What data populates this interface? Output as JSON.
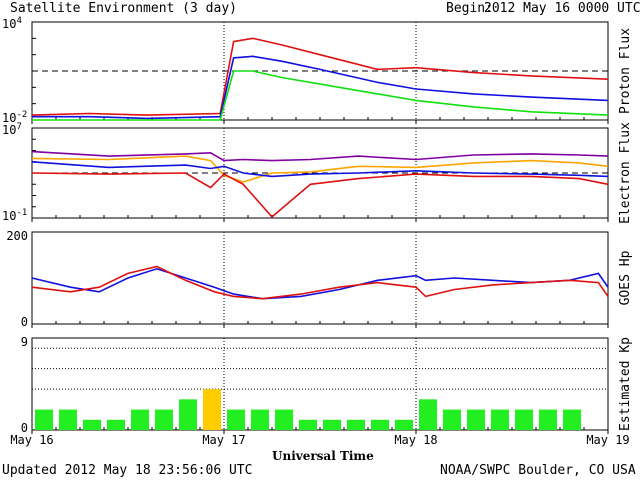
{
  "header": {
    "title": "Satellite Environment (3 day)",
    "begin_label": "Begin:",
    "begin_value": "2012 May 16 0000 UTC"
  },
  "footer": {
    "updated": "Updated 2012 May 18 23:56:06 UTC",
    "credit": "NOAA/SWPC Boulder, CO USA"
  },
  "x_axis": {
    "label": "Universal Time",
    "ticks": [
      "May 16",
      "May 17",
      "May 18",
      "May 19"
    ]
  },
  "colors": {
    "red": "#e01010",
    "blue": "#1010e0",
    "green": "#10e010",
    "orange": "#ffa500",
    "purple": "#8000a0",
    "kp_green": "#22ee22",
    "kp_yellow": "#ffcc00"
  },
  "chart_data": [
    {
      "type": "line",
      "ylabel": "Proton Flux",
      "scale": "log",
      "ylim_exp": [
        -2,
        4
      ],
      "ytick_labels": [
        {
          "base": "10",
          "exp": "4"
        },
        {
          "base": "10",
          "exp": "-2"
        }
      ],
      "threshold_exp": 1,
      "x_days": [
        0,
        0.3,
        0.6,
        0.98,
        1.05,
        1.15,
        1.3,
        1.5,
        1.8,
        2.0,
        2.3,
        2.6,
        3.0
      ],
      "series": [
        {
          "color": "red",
          "values_exp": [
            -1.7,
            -1.6,
            -1.7,
            -1.6,
            2.8,
            3.0,
            2.6,
            2.0,
            1.1,
            1.2,
            0.9,
            0.7,
            0.5
          ]
        },
        {
          "color": "blue",
          "values_exp": [
            -1.8,
            -1.8,
            -1.9,
            -1.8,
            1.8,
            1.9,
            1.6,
            1.1,
            0.3,
            -0.1,
            -0.4,
            -0.6,
            -0.8
          ]
        },
        {
          "color": "green",
          "values_exp": [
            -2.0,
            -2.0,
            -2.0,
            -2.0,
            1.0,
            1.0,
            0.6,
            0.2,
            -0.4,
            -0.8,
            -1.2,
            -1.5,
            -1.7
          ]
        }
      ]
    },
    {
      "type": "line",
      "ylabel": "Electron Flux",
      "scale": "log",
      "ylim_exp": [
        -1,
        7
      ],
      "ytick_labels": [
        {
          "base": "10",
          "exp": "7"
        },
        {
          "base": "10",
          "exp": "-1"
        }
      ],
      "threshold_exp": 3,
      "x_days": [
        0,
        0.4,
        0.8,
        0.93,
        1.0,
        1.1,
        1.25,
        1.45,
        1.7,
        2.0,
        2.3,
        2.6,
        2.85,
        3.0
      ],
      "series": [
        {
          "color": "purple",
          "values_exp": [
            4.9,
            4.5,
            4.7,
            4.8,
            4.1,
            4.2,
            4.1,
            4.2,
            4.5,
            4.2,
            4.6,
            4.7,
            4.6,
            4.5
          ]
        },
        {
          "color": "orange",
          "values_exp": [
            4.3,
            4.2,
            4.5,
            4.1,
            2.8,
            2.2,
            3.0,
            3.1,
            3.6,
            3.5,
            3.9,
            4.1,
            3.9,
            3.6
          ]
        },
        {
          "color": "blue",
          "values_exp": [
            4.0,
            3.5,
            3.7,
            3.4,
            3.6,
            3.0,
            2.7,
            2.9,
            3.0,
            3.2,
            3.0,
            2.9,
            2.8,
            2.7
          ]
        },
        {
          "color": "red",
          "values_exp": [
            3.0,
            2.9,
            3.0,
            1.7,
            2.9,
            2.0,
            -0.9,
            2.0,
            2.5,
            2.9,
            2.7,
            2.7,
            2.5,
            2.0
          ]
        }
      ]
    },
    {
      "type": "line",
      "ylabel": "GOES Hp",
      "scale": "linear",
      "ylim": [
        0,
        200
      ],
      "yticks": [
        0,
        200
      ],
      "x_days": [
        0,
        0.2,
        0.35,
        0.5,
        0.65,
        0.8,
        0.95,
        1.05,
        1.2,
        1.4,
        1.6,
        1.8,
        2.0,
        2.05,
        2.2,
        2.4,
        2.6,
        2.8,
        2.95,
        3.0
      ],
      "series": [
        {
          "color": "blue",
          "values": [
            100,
            80,
            70,
            100,
            120,
            100,
            80,
            65,
            55,
            60,
            75,
            95,
            105,
            95,
            100,
            95,
            90,
            95,
            110,
            80
          ]
        },
        {
          "color": "red",
          "values": [
            80,
            70,
            80,
            110,
            125,
            95,
            70,
            60,
            55,
            65,
            80,
            90,
            80,
            60,
            75,
            85,
            90,
            95,
            90,
            60
          ]
        }
      ]
    },
    {
      "type": "bar",
      "ylabel": "Estimated Kp",
      "ylim": [
        0,
        9
      ],
      "yticks": [
        0,
        9
      ],
      "gridlines": [
        4,
        6,
        8
      ],
      "values": [
        2,
        2,
        1,
        1,
        2,
        2,
        3,
        4,
        2,
        2,
        2,
        1,
        1,
        1,
        1,
        1,
        3,
        2,
        2,
        2,
        2,
        2,
        2,
        0
      ],
      "bar_colors": [
        "kp_green",
        "kp_green",
        "kp_green",
        "kp_green",
        "kp_green",
        "kp_green",
        "kp_green",
        "kp_yellow",
        "kp_green",
        "kp_green",
        "kp_green",
        "kp_green",
        "kp_green",
        "kp_green",
        "kp_green",
        "kp_green",
        "kp_green",
        "kp_green",
        "kp_green",
        "kp_green",
        "kp_green",
        "kp_green",
        "kp_green",
        "kp_green"
      ]
    }
  ]
}
